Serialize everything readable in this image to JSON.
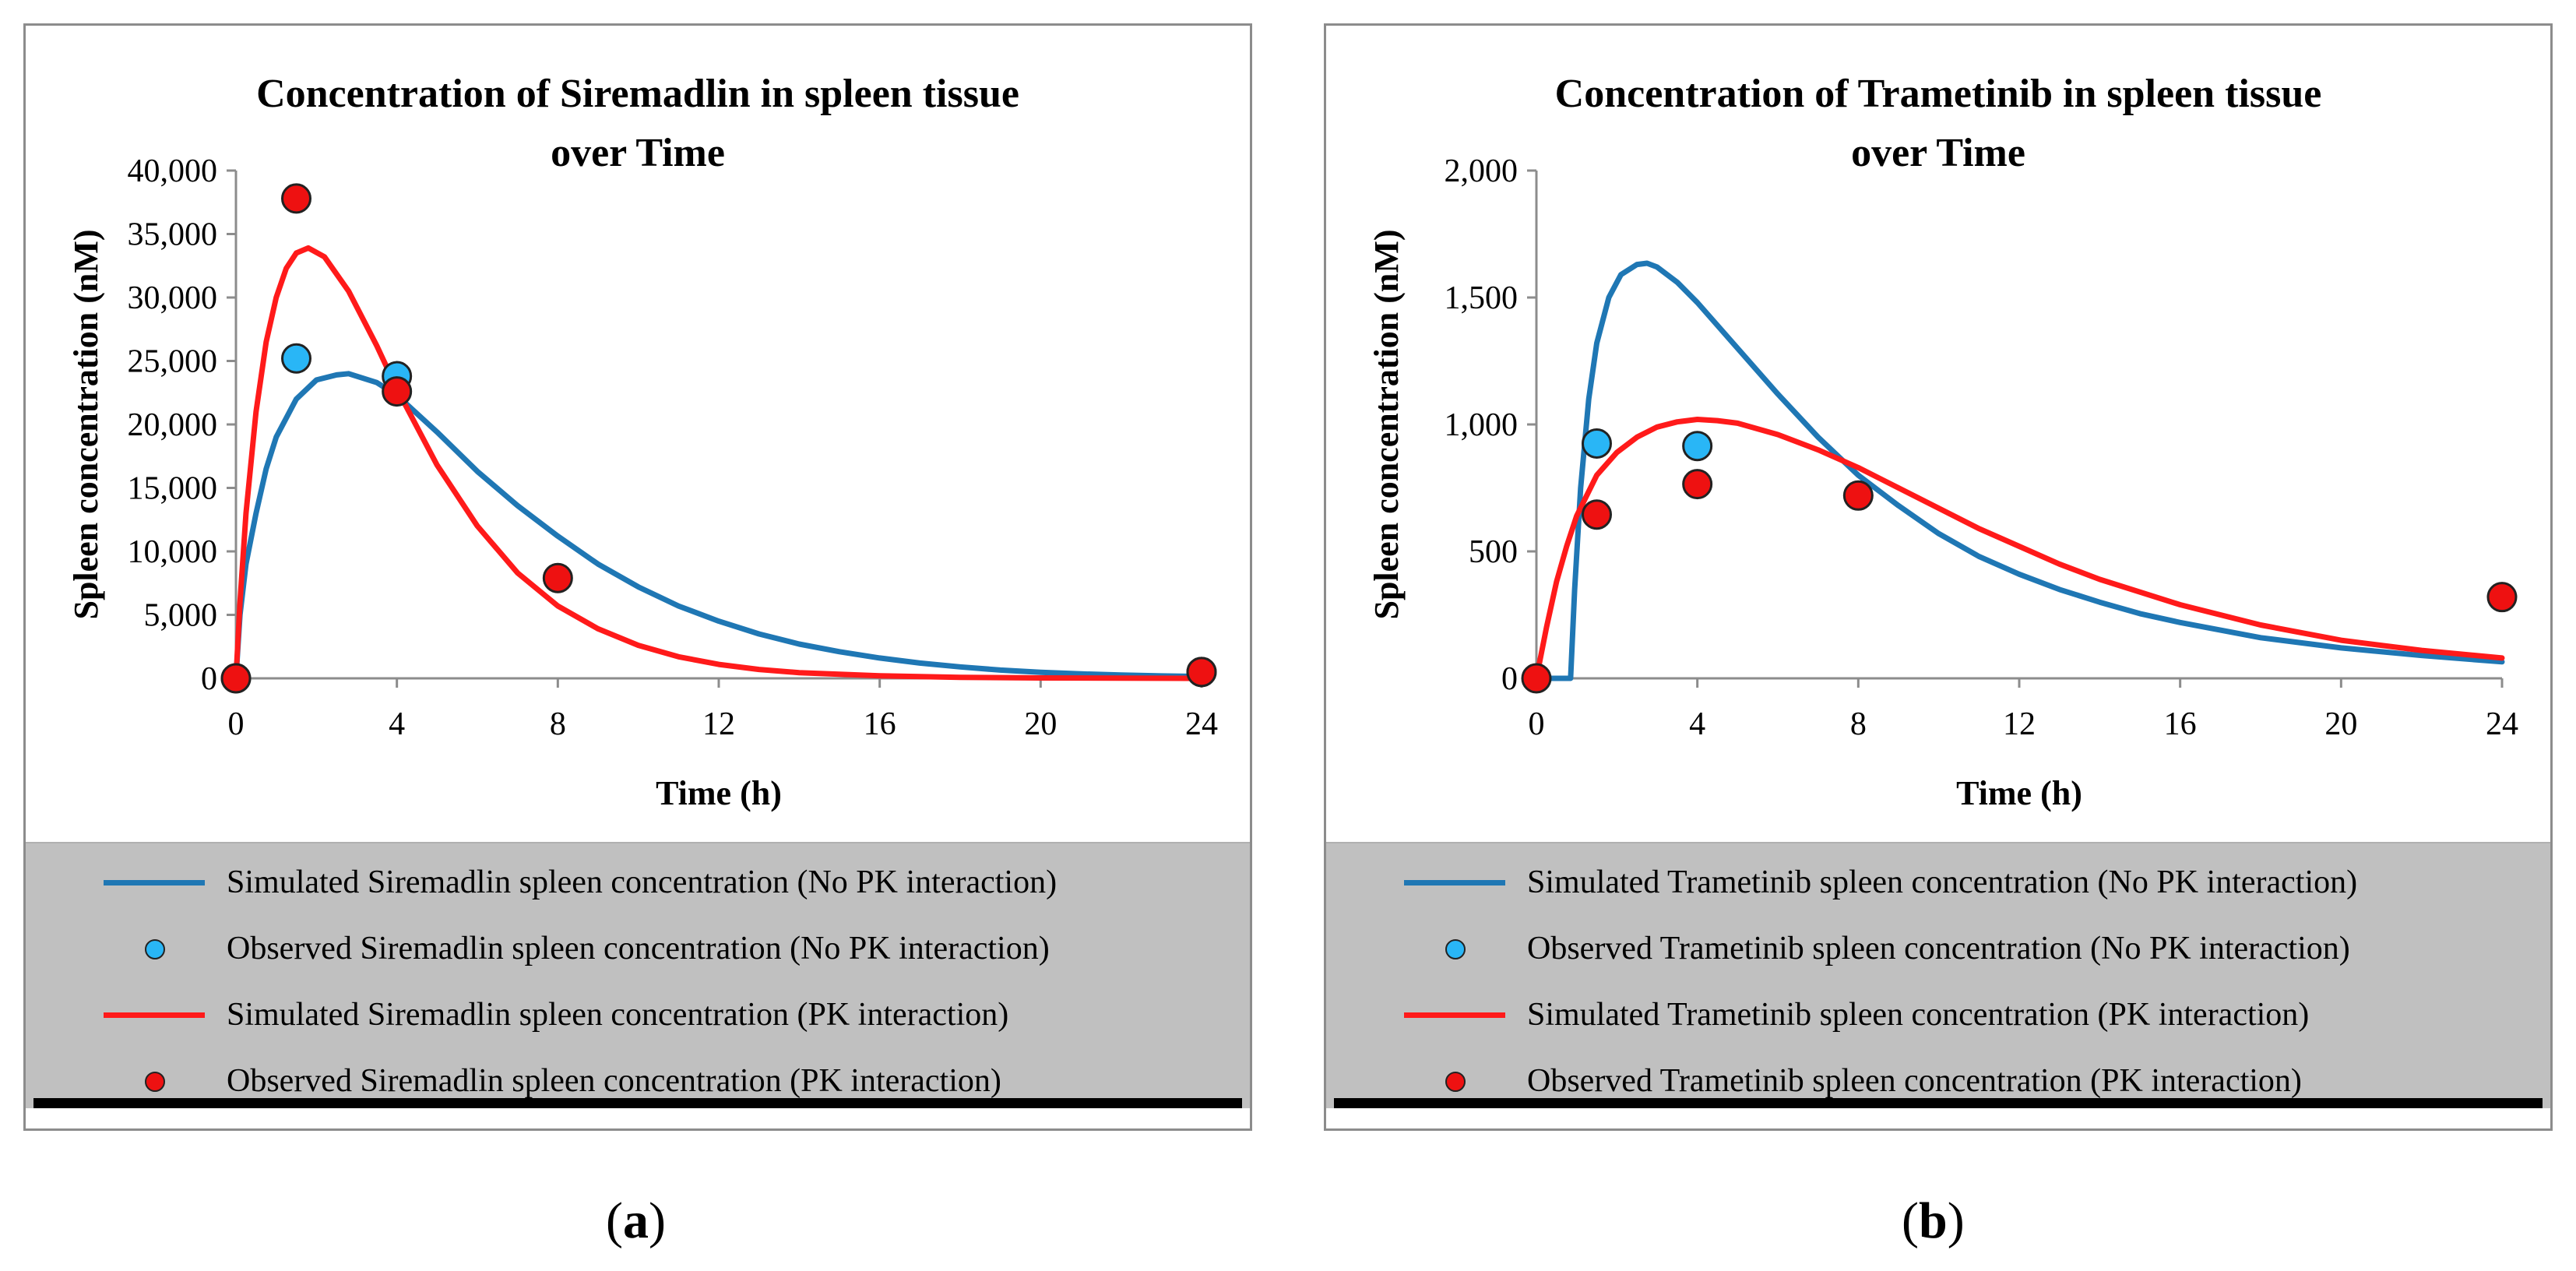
{
  "colors": {
    "blue": "#1f77b4",
    "red": "#ff1a1a",
    "blue_marker": "#29b6f6",
    "red_marker": "#ee1111"
  },
  "chart_data": [
    {
      "type": "line",
      "panel_label": {
        "open": "(",
        "letter": "a",
        "close": ")"
      },
      "title_lines": [
        "Concentration of Siremadlin in spleen tissue",
        "over Time"
      ],
      "xlabel": "Time (h)",
      "ylabel": "Spleen concentration (nM)",
      "xlim": [
        0,
        24
      ],
      "ylim": [
        0,
        40000
      ],
      "xticks": [
        0,
        4,
        8,
        12,
        16,
        20,
        24
      ],
      "yticks": [
        0,
        5000,
        10000,
        15000,
        20000,
        25000,
        30000,
        35000,
        40000
      ],
      "ytick_labels": [
        "0",
        "5,000",
        "10,000",
        "15,000",
        "20,000",
        "25,000",
        "30,000",
        "35,000",
        "40,000"
      ],
      "series": [
        {
          "name": "Simulated Siremadlin spleen concentration (No PK interaction)",
          "kind": "line",
          "color": "#1f77b4",
          "x": [
            0,
            0.1,
            0.25,
            0.5,
            0.75,
            1,
            1.5,
            2,
            2.5,
            2.8,
            3.5,
            4,
            5,
            6,
            7,
            8,
            9,
            10,
            11,
            12,
            13,
            14,
            15,
            16,
            17,
            18,
            19,
            20,
            21,
            22,
            23,
            24
          ],
          "y": [
            0,
            5000,
            9000,
            13000,
            16500,
            19000,
            22000,
            23500,
            23900,
            24000,
            23300,
            22300,
            19400,
            16300,
            13600,
            11200,
            9000,
            7200,
            5700,
            4500,
            3500,
            2700,
            2100,
            1600,
            1200,
            900,
            650,
            480,
            350,
            260,
            190,
            140
          ]
        },
        {
          "name": "Observed Siremadlin spleen concentration (No PK interaction)",
          "kind": "scatter",
          "color": "#29b6f6",
          "x": [
            0,
            1.5,
            4,
            24
          ],
          "y": [
            0,
            25200,
            23800,
            500
          ]
        },
        {
          "name": "Simulated Siremadlin spleen concentration (PK interaction)",
          "kind": "line",
          "color": "#ff1a1a",
          "x": [
            0,
            0.1,
            0.25,
            0.5,
            0.75,
            1,
            1.25,
            1.5,
            1.8,
            2.2,
            2.8,
            3.5,
            4,
            5,
            6,
            7,
            8,
            9,
            10,
            11,
            12,
            13,
            14,
            16,
            18,
            20,
            22,
            24
          ],
          "y": [
            0,
            6000,
            13000,
            21000,
            26500,
            30000,
            32300,
            33500,
            33900,
            33200,
            30500,
            26200,
            22800,
            16800,
            12000,
            8300,
            5700,
            3900,
            2600,
            1700,
            1100,
            700,
            450,
            200,
            80,
            30,
            10,
            0
          ]
        },
        {
          "name": "Observed Siremadlin spleen concentration (PK interaction)",
          "kind": "scatter",
          "color": "#ee1111",
          "x": [
            0,
            1.5,
            4,
            8,
            24
          ],
          "y": [
            0,
            37800,
            22600,
            7900,
            500
          ]
        }
      ]
    },
    {
      "type": "line",
      "panel_label": {
        "open": "(",
        "letter": "b",
        "close": ")"
      },
      "title_lines": [
        "Concentration of Trametinib in spleen tissue",
        "over Time"
      ],
      "xlabel": "Time (h)",
      "ylabel": "Spleen concentration (nM)",
      "xlim": [
        0,
        24
      ],
      "ylim": [
        0,
        2000
      ],
      "xticks": [
        0,
        4,
        8,
        12,
        16,
        20,
        24
      ],
      "yticks": [
        0,
        500,
        1000,
        1500,
        2000
      ],
      "ytick_labels": [
        "0",
        "500",
        "1,000",
        "1,500",
        "2,000"
      ],
      "series": [
        {
          "name": "Simulated Trametinib spleen concentration (No PK interaction)",
          "kind": "line",
          "color": "#1f77b4",
          "x": [
            0,
            0.85,
            0.95,
            1.1,
            1.3,
            1.5,
            1.8,
            2.1,
            2.5,
            2.75,
            3,
            3.5,
            4,
            5,
            6,
            7,
            8,
            9,
            10,
            11,
            12,
            13,
            14,
            15,
            16,
            18,
            20,
            22,
            24
          ],
          "y": [
            0,
            0,
            350,
            750,
            1100,
            1320,
            1500,
            1590,
            1630,
            1635,
            1620,
            1560,
            1480,
            1300,
            1120,
            950,
            800,
            680,
            570,
            480,
            410,
            350,
            300,
            255,
            220,
            160,
            120,
            90,
            65
          ]
        },
        {
          "name": "Observed Trametinib spleen concentration (No PK interaction)",
          "kind": "scatter",
          "color": "#29b6f6",
          "x": [
            1.5,
            4
          ],
          "y": [
            925,
            915
          ]
        },
        {
          "name": "Simulated Trametinib spleen concentration (PK interaction)",
          "kind": "line",
          "color": "#ff1a1a",
          "x": [
            0,
            0.25,
            0.5,
            0.75,
            1,
            1.5,
            2,
            2.5,
            3,
            3.5,
            4,
            4.5,
            5,
            6,
            7,
            8,
            9,
            10,
            11,
            12,
            13,
            14,
            16,
            18,
            20,
            22,
            24
          ],
          "y": [
            0,
            200,
            380,
            520,
            640,
            800,
            890,
            950,
            990,
            1010,
            1020,
            1015,
            1005,
            960,
            900,
            830,
            750,
            670,
            590,
            520,
            450,
            390,
            290,
            210,
            150,
            110,
            80
          ]
        },
        {
          "name": "Observed Trametinib spleen concentration (PK interaction)",
          "kind": "scatter",
          "color": "#ee1111",
          "x": [
            0,
            1.5,
            4,
            8,
            24
          ],
          "y": [
            0,
            645,
            765,
            720,
            320
          ]
        }
      ]
    }
  ]
}
